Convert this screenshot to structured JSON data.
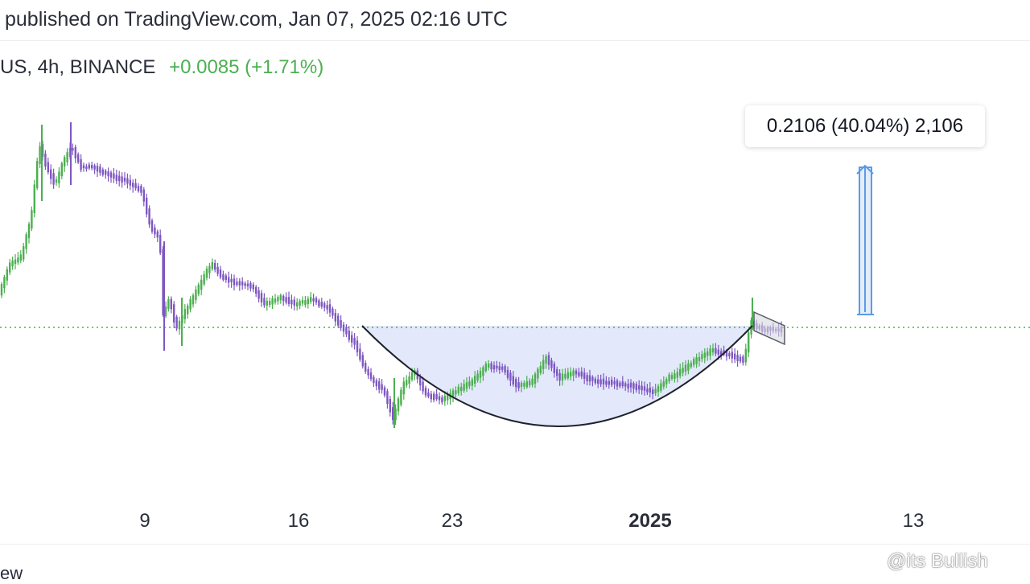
{
  "header": {
    "published": "published on TradingView.com, Jan 07, 2025 02:16 UTC"
  },
  "symbol_row": {
    "symbol": "US, 4h, BINANCE",
    "change": "+0.0085 (+1.71%)"
  },
  "measure_label": "0.2106 (40.04%) 2,106",
  "footer": {
    "left_fragment": "ew",
    "watermark": "@its Bullish"
  },
  "colors": {
    "up": "#4caf50",
    "down": "#7e57c2",
    "bowl_fill": "#e3e8fb",
    "measure": "#5b9be8",
    "dotted": "#4caf50"
  },
  "chart_data": {
    "type": "candlestick",
    "title": "",
    "xlabel": "",
    "ylabel": "",
    "x_ticks": [
      {
        "label": "9",
        "bold": false
      },
      {
        "label": "16",
        "bold": false
      },
      {
        "label": "23",
        "bold": false
      },
      {
        "label": "2025",
        "bold": true
      },
      {
        "label": "13",
        "bold": false
      }
    ],
    "annotations": [
      {
        "type": "rounded-bottom-pattern"
      },
      {
        "type": "horizontal-dotted-level"
      },
      {
        "type": "price-range-measure",
        "label": "0.2106 (40.04%) 2,106"
      },
      {
        "type": "flag-channel"
      }
    ],
    "grid": false
  }
}
